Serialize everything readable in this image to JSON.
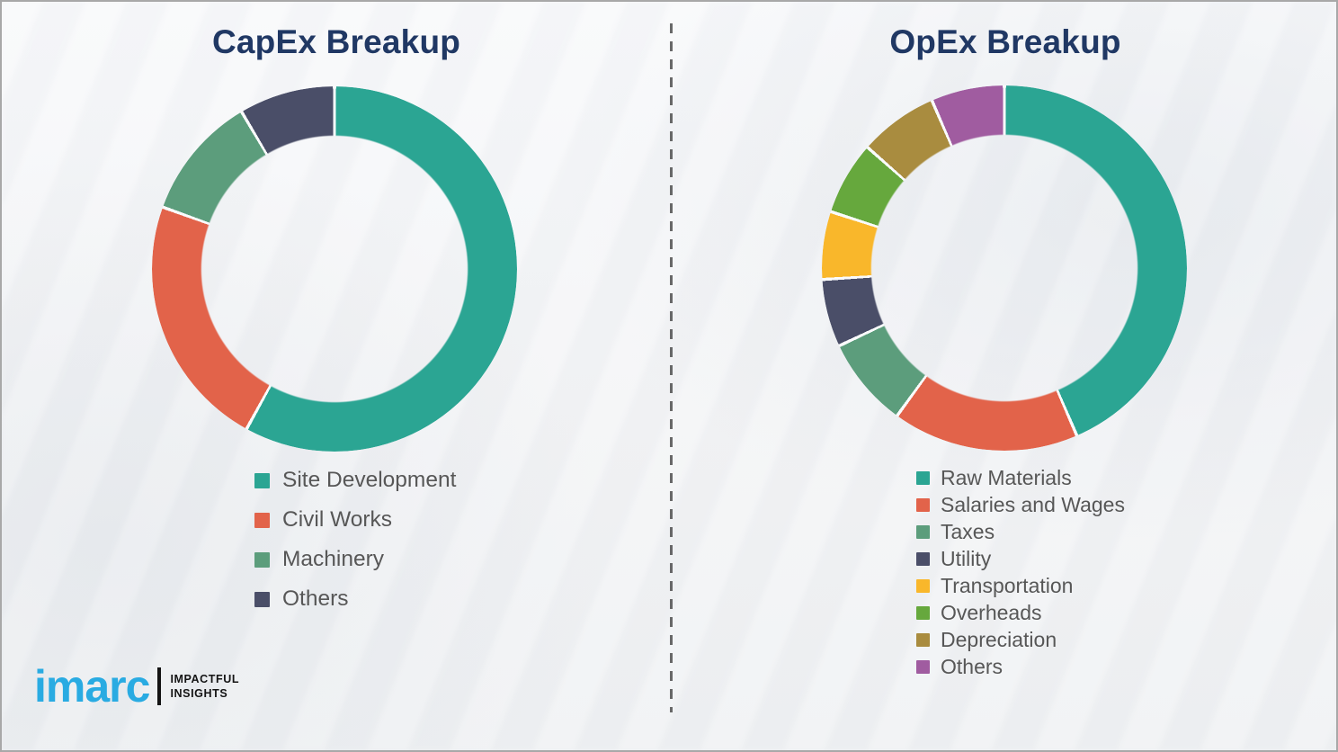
{
  "page": {
    "colors": {
      "background": "#f3f4f6",
      "border_color": "#a8a8a8",
      "divider_color": "#4f4f4f",
      "title_color": "#203864",
      "legend_text_color": "#575757",
      "slice_gap_color": "#fafbfc",
      "logo_blue": "#29ABE2",
      "logo_black": "#141414"
    }
  },
  "chart_data": [
    {
      "type": "pie",
      "variant": "donut",
      "title": "CapEx Breakup",
      "categories": [
        "Site Development",
        "Civil Works",
        "Machinery",
        "Others"
      ],
      "values": [
        58,
        22.5,
        11,
        8.5
      ],
      "colors": [
        "#2BA593",
        "#E2634A",
        "#5C9D7C",
        "#4A4E68"
      ],
      "units": "percent (estimated from arc angles; no data labels shown)",
      "start_angle_deg": 0,
      "direction": "clockwise",
      "donut_hole_ratio": 0.73,
      "legend_position": "bottom-left"
    },
    {
      "type": "pie",
      "variant": "donut",
      "title": "OpEx Breakup",
      "categories": [
        "Raw Materials",
        "Salaries and Wages",
        "Taxes",
        "Utility",
        "Transportation",
        "Overheads",
        "Depreciation",
        "Others"
      ],
      "values": [
        43.5,
        16.5,
        8,
        6,
        6,
        6.5,
        7,
        6.5
      ],
      "colors": [
        "#2BA593",
        "#E2634A",
        "#5C9D7C",
        "#4A4E68",
        "#F9B72B",
        "#66A83D",
        "#A98C3F",
        "#A05CA0"
      ],
      "units": "percent (estimated from arc angles; no data labels shown)",
      "start_angle_deg": 0,
      "direction": "clockwise",
      "donut_hole_ratio": 0.73,
      "legend_position": "bottom-left"
    }
  ],
  "logo": {
    "brand": "imarc",
    "tagline_line1": "IMPACTFUL",
    "tagline_line2": "INSIGHTS"
  }
}
